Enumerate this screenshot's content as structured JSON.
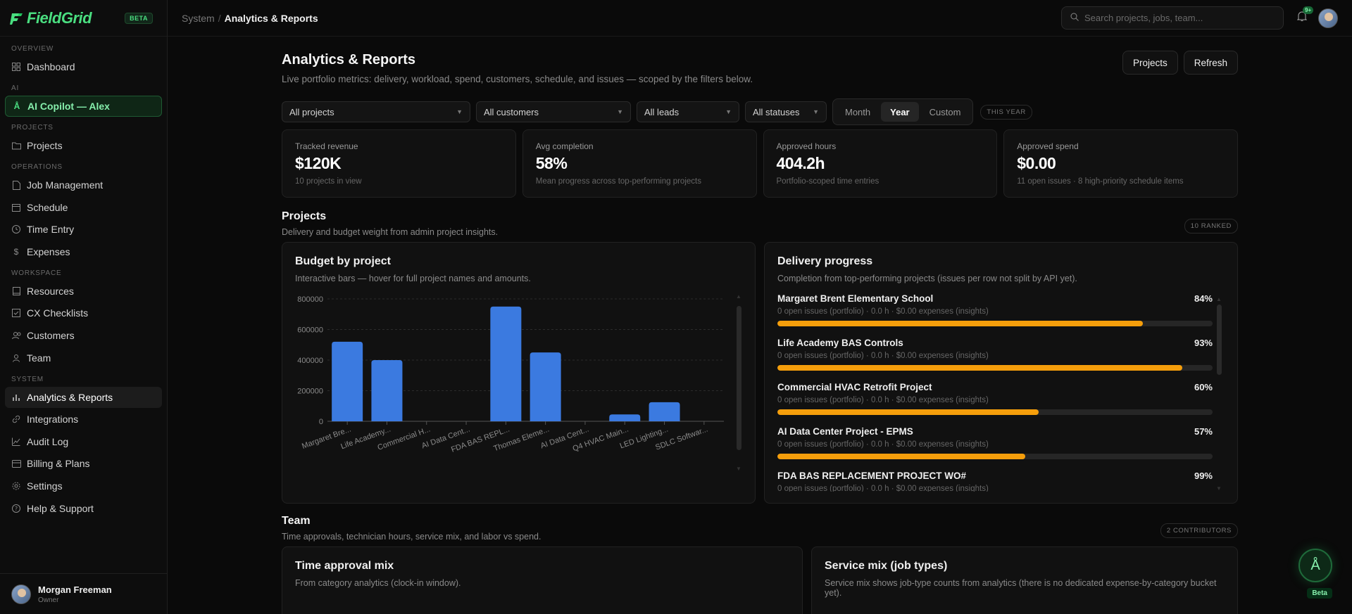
{
  "brand": {
    "name": "FieldGrid",
    "badge": "BETA"
  },
  "sidebar": {
    "sections": {
      "overview": "OVERVIEW",
      "ai": "AI",
      "projects": "PROJECTS",
      "operations": "OPERATIONS",
      "workspace": "WORKSPACE",
      "system": "SYSTEM"
    },
    "items": {
      "dashboard": "Dashboard",
      "copilot": "AI Copilot — Alex",
      "projects": "Projects",
      "jobs": "Job Management",
      "schedule": "Schedule",
      "time": "Time Entry",
      "expenses": "Expenses",
      "resources": "Resources",
      "cx": "CX Checklists",
      "customers": "Customers",
      "team": "Team",
      "analytics": "Analytics & Reports",
      "integrations": "Integrations",
      "audit": "Audit Log",
      "billing": "Billing & Plans",
      "settings": "Settings",
      "help": "Help & Support"
    },
    "user": {
      "name": "Morgan Freeman",
      "role": "Owner"
    }
  },
  "header": {
    "crumb_parent": "System",
    "crumb_sep": "/",
    "crumb_current": "Analytics & Reports",
    "search_placeholder": "Search projects, jobs, team...",
    "notif_badge": "9+"
  },
  "page": {
    "title": "Analytics & Reports",
    "subtitle": "Live portfolio metrics: delivery, workload, spend, customers, schedule, and issues — scoped by the filters below.",
    "btn_projects": "Projects",
    "btn_refresh": "Refresh"
  },
  "filters": {
    "projects": "All projects",
    "customers": "All customers",
    "leads": "All leads",
    "statuses": "All statuses",
    "period_month": "Month",
    "period_year": "Year",
    "period_custom": "Custom",
    "period_pill": "THIS YEAR"
  },
  "kpis": [
    {
      "label": "Tracked revenue",
      "value": "$120K",
      "note": "10 projects in view"
    },
    {
      "label": "Avg completion",
      "value": "58%",
      "note": "Mean progress across top-performing projects"
    },
    {
      "label": "Approved hours",
      "value": "404.2h",
      "note": "Portfolio-scoped time entries"
    },
    {
      "label": "Approved spend",
      "value": "$0.00",
      "note": "11 open issues · 8 high-priority schedule items"
    }
  ],
  "projects_section": {
    "title": "Projects",
    "subtitle": "Delivery and budget weight from admin project insights.",
    "pill": "10 RANKED"
  },
  "budget_card": {
    "title": "Budget by project",
    "subtitle": "Interactive bars — hover for full project names and amounts."
  },
  "chart_data": {
    "type": "bar",
    "categories": [
      "Margaret Bre...",
      "Life Academy...",
      "Commercial H...",
      "AI Data Cent...",
      "FDA BAS REPL...",
      "Thomas Eleme...",
      "AI Data Cent...",
      "Q4 HVAC Main...",
      "LED Lighting...",
      "SDLC Softwar..."
    ],
    "values": [
      520000,
      400000,
      0,
      0,
      750000,
      450000,
      0,
      45000,
      125000,
      0
    ],
    "yticks": [
      "0",
      "200000",
      "400000",
      "600000",
      "800000"
    ],
    "ylim": [
      0,
      800000
    ],
    "color": "#3b7ae0"
  },
  "delivery_card": {
    "title": "Delivery progress",
    "subtitle": "Completion from top-performing projects (issues per row not split by API yet).",
    "items": [
      {
        "name": "Margaret Brent Elementary School",
        "pct": "84%",
        "meta": "0 open issues (portfolio) · 0.0 h · $0.00 expenses (insights)",
        "value": 84
      },
      {
        "name": "Life Academy BAS Controls",
        "pct": "93%",
        "meta": "0 open issues (portfolio) · 0.0 h · $0.00 expenses (insights)",
        "value": 93
      },
      {
        "name": "Commercial HVAC Retrofit Project",
        "pct": "60%",
        "meta": "0 open issues (portfolio) · 0.0 h · $0.00 expenses (insights)",
        "value": 60
      },
      {
        "name": "AI Data Center Project - EPMS",
        "pct": "57%",
        "meta": "0 open issues (portfolio) · 0.0 h · $0.00 expenses (insights)",
        "value": 57
      },
      {
        "name": "FDA BAS REPLACEMENT PROJECT WO#",
        "pct": "99%",
        "meta": "0 open issues (portfolio) · 0.0 h · $0.00 expenses (insights)",
        "value": 99
      }
    ]
  },
  "team_section": {
    "title": "Team",
    "subtitle": "Time approvals, technician hours, service mix, and labor vs spend.",
    "pill": "2 CONTRIBUTORS"
  },
  "time_card": {
    "title": "Time approval mix",
    "subtitle": "From category analytics (clock-in window)."
  },
  "service_card": {
    "title": "Service mix (job types)",
    "subtitle": "Service mix shows job-type counts from analytics (there is no dedicated expense-by-category bucket yet)."
  },
  "fab": {
    "label": "Beta"
  }
}
